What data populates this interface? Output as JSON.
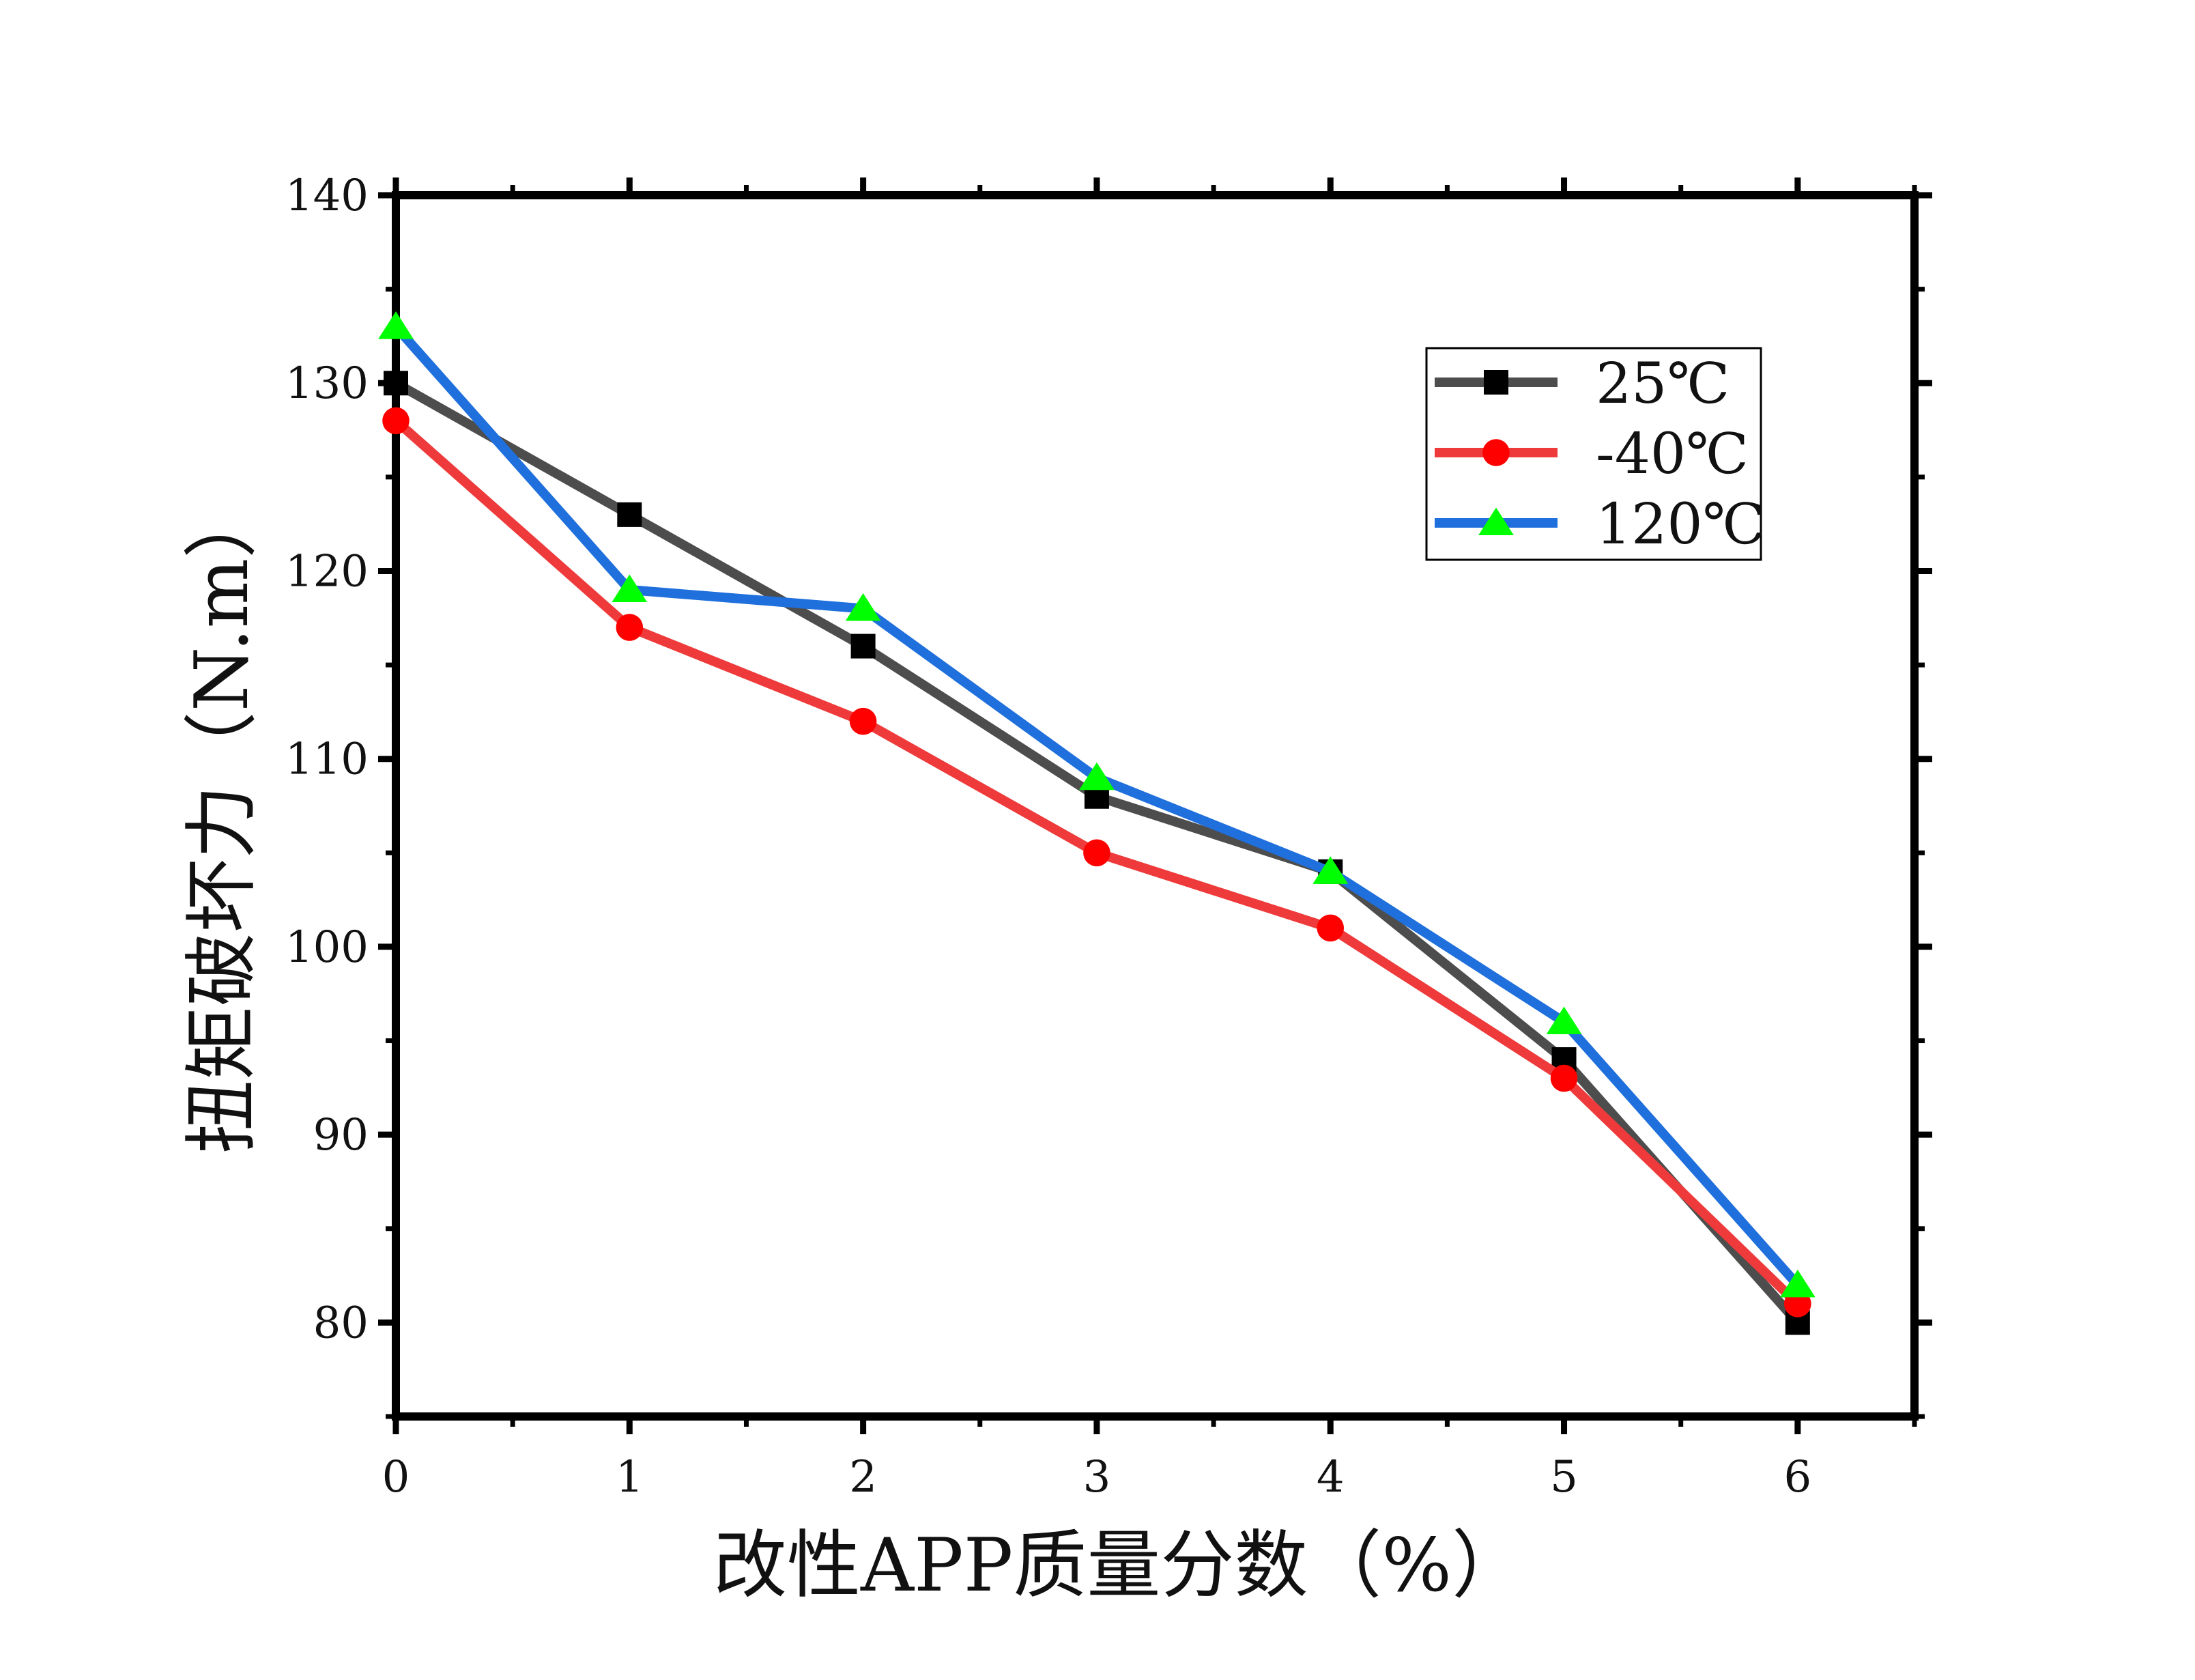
{
  "chart_data": {
    "type": "line",
    "xlabel": "改性APP质量分数（%）",
    "ylabel": "扭矩破坏力（N.m）",
    "x": [
      0,
      1,
      2,
      3,
      4,
      5,
      6
    ],
    "xlim": [
      0,
      6.5
    ],
    "ylim": [
      75,
      140
    ],
    "xticks": [
      0,
      1,
      2,
      3,
      4,
      5,
      6
    ],
    "yticks": [
      80,
      90,
      100,
      110,
      120,
      130,
      140
    ],
    "grid": false,
    "legend_position": "top-right",
    "series": [
      {
        "name": "25℃",
        "values": [
          130,
          123,
          116,
          108,
          104,
          94,
          80
        ],
        "color": "#4d4d4d",
        "marker": "square",
        "marker_color": "#000000"
      },
      {
        "name": "-40℃",
        "values": [
          128,
          117,
          112,
          105,
          101,
          93,
          81
        ],
        "color": "#ee3a3a",
        "marker": "circle",
        "marker_color": "#ff0000"
      },
      {
        "name": "120℃",
        "values": [
          133,
          119,
          118,
          109,
          104,
          96,
          82
        ],
        "color": "#1f6fdc",
        "marker": "triangle",
        "marker_color": "#00ff00"
      }
    ]
  }
}
